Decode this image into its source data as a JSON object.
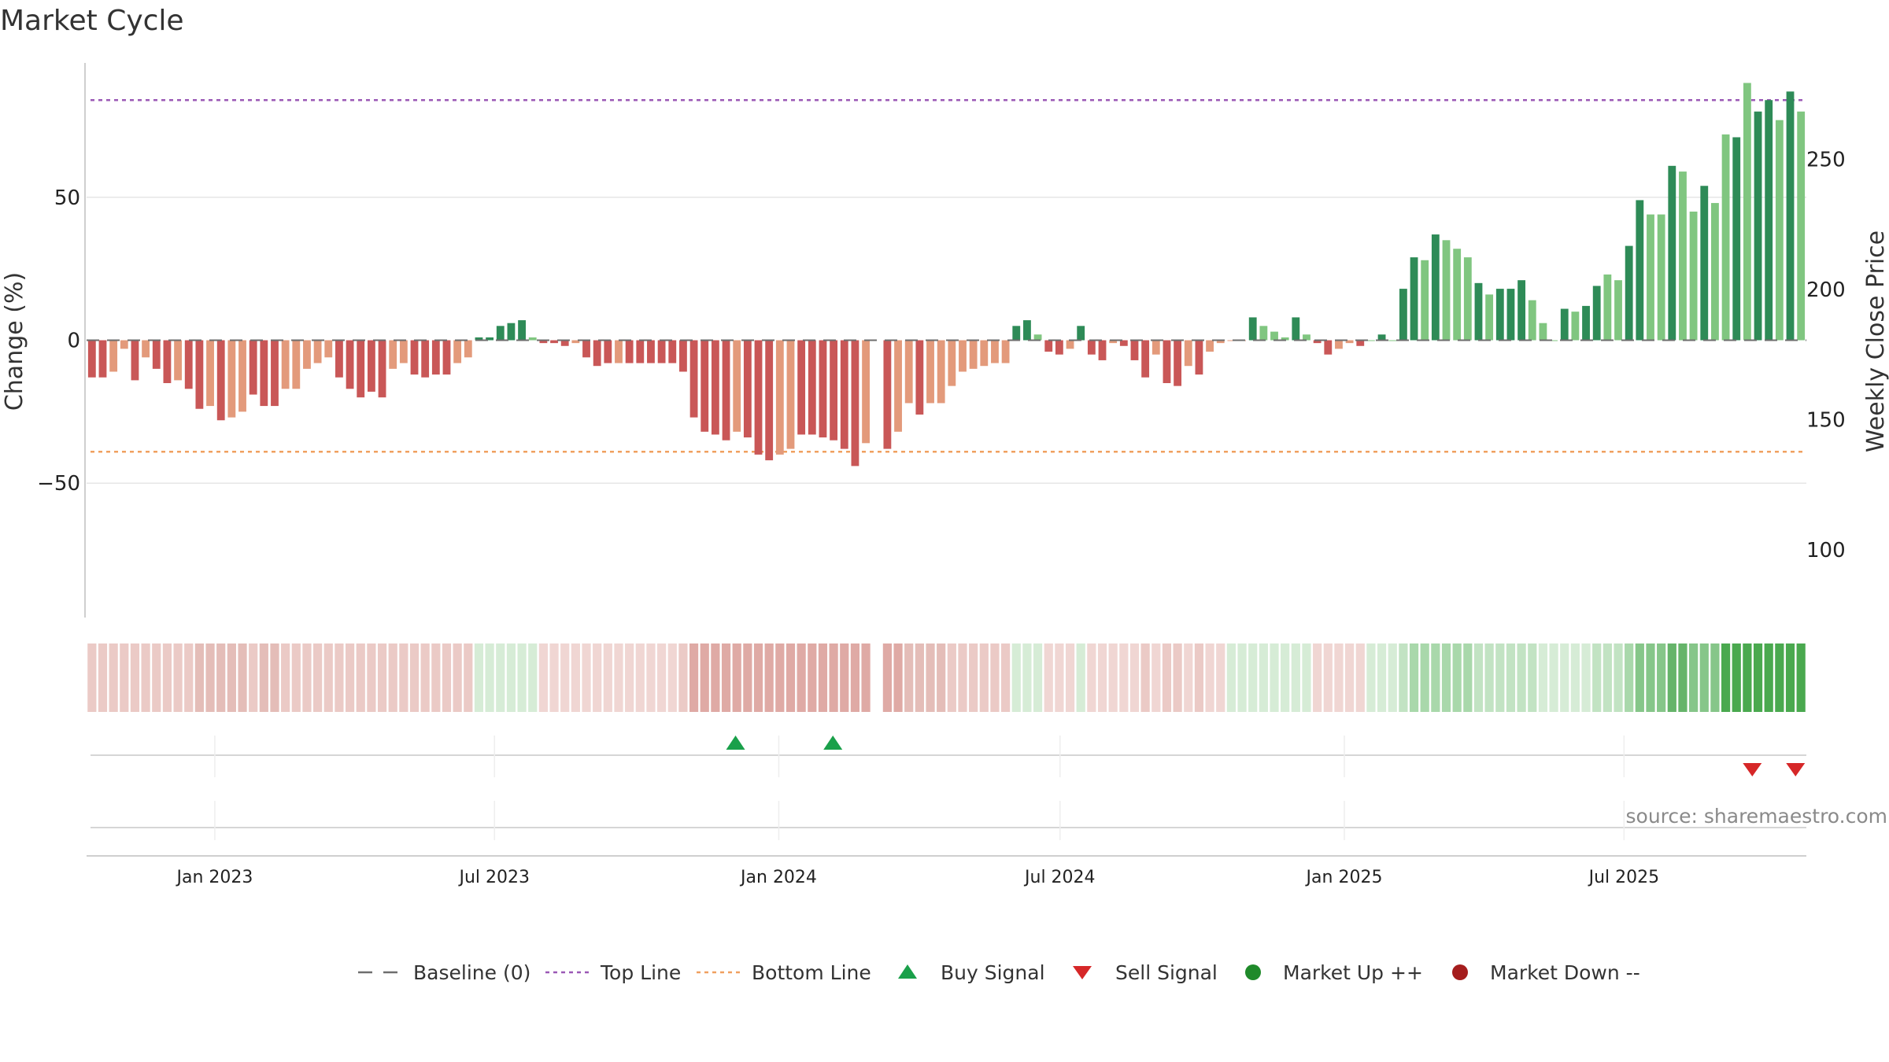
{
  "chart_data": {
    "type": "bar",
    "title": "Market Cycle",
    "ylabel": "Change (%)",
    "y2label": "Weekly Close Price",
    "ylim": [
      -97,
      97
    ],
    "y_ticks": [
      50,
      0,
      -50
    ],
    "y_tick_labels": [
      "50",
      "0",
      "−50"
    ],
    "y2lim": [
      74,
      287
    ],
    "y2_ticks": [
      250,
      200,
      150,
      100
    ],
    "y2_tick_labels": [
      "250",
      "200",
      "150",
      "100"
    ],
    "top_line": 84,
    "bottom_line": -39,
    "baseline": 0,
    "x_start": "2022-10-10",
    "x_end": "2025-10-27",
    "x_ticks": [
      "2023-01-01",
      "2023-07-01",
      "2024-01-01",
      "2024-07-01",
      "2025-01-01",
      "2025-07-01"
    ],
    "x_tick_labels": [
      "Jan 2023",
      "Jul 2023",
      "Jan 2024",
      "Jul 2024",
      "Jan 2025",
      "Jul 2025"
    ],
    "series": [
      {
        "values": [
          -13,
          -13,
          -11,
          -3,
          -14,
          -6,
          -10,
          -15,
          -14,
          -17,
          -24,
          -23,
          -28,
          -27,
          -25,
          -19,
          -23,
          -23,
          -17,
          -17,
          -10,
          -8,
          -6,
          -13,
          -17,
          -20,
          -18,
          -20,
          -10,
          -8,
          -12,
          -13,
          -12,
          -12,
          -8,
          -6,
          1,
          1,
          5,
          6,
          7,
          1,
          -1,
          -1,
          -2,
          -1,
          -6,
          -9,
          -8,
          -8,
          -8,
          -8,
          -8,
          -8,
          -8,
          -11,
          -27,
          -32,
          -33,
          -35,
          -32,
          -34,
          -40,
          -42,
          -40,
          -38,
          -33,
          -33,
          -34,
          -35,
          -38,
          -44,
          -36,
          null,
          -38,
          -32,
          -22,
          -26,
          -22,
          -22,
          -16,
          -11,
          -10,
          -9,
          -8,
          -8,
          5,
          7,
          2,
          -4,
          -5,
          -3,
          5,
          -5,
          -7,
          -1,
          -2,
          -7,
          -13,
          -5,
          -15,
          -16,
          -9,
          -12,
          -4,
          -1,
          0,
          0,
          8,
          5,
          3,
          1,
          8,
          2,
          -1,
          -5,
          -3,
          -1,
          -2,
          0,
          2,
          0,
          18,
          29,
          28,
          37,
          35,
          32,
          29,
          20,
          16,
          18,
          18,
          21,
          14,
          6,
          0,
          11,
          10,
          12,
          19,
          23,
          21,
          33,
          49,
          44,
          44,
          61,
          59,
          45,
          54,
          48,
          72,
          71,
          90,
          80,
          84,
          77,
          87,
          80
        ],
        "colors": [
          "neg-dark",
          "neg-dark",
          "neg-light",
          "neg-light",
          "neg-dark",
          "neg-light",
          "neg-dark",
          "neg-dark",
          "neg-light",
          "neg-dark",
          "neg-dark",
          "neg-light",
          "neg-dark",
          "neg-light",
          "neg-light",
          "neg-dark",
          "neg-dark",
          "neg-dark",
          "neg-light",
          "neg-light",
          "neg-light",
          "neg-light",
          "neg-light",
          "neg-dark",
          "neg-dark",
          "neg-dark",
          "neg-dark",
          "neg-dark",
          "neg-light",
          "neg-light",
          "neg-dark",
          "neg-dark",
          "neg-dark",
          "neg-dark",
          "neg-light",
          "neg-light",
          "pos-dark",
          "pos-dark",
          "pos-dark",
          "pos-dark",
          "pos-dark",
          "pos-light",
          "neg-dark",
          "neg-dark",
          "neg-dark",
          "neg-light",
          "neg-dark",
          "neg-dark",
          "neg-dark",
          "neg-light",
          "neg-dark",
          "neg-dark",
          "neg-dark",
          "neg-dark",
          "neg-dark",
          "neg-dark",
          "neg-dark",
          "neg-dark",
          "neg-dark",
          "neg-dark",
          "neg-light",
          "neg-dark",
          "neg-dark",
          "neg-dark",
          "neg-light",
          "neg-light",
          "neg-dark",
          "neg-dark",
          "neg-dark",
          "neg-dark",
          "neg-dark",
          "neg-dark",
          "neg-light",
          null,
          "neg-dark",
          "neg-light",
          "neg-light",
          "neg-dark",
          "neg-light",
          "neg-light",
          "neg-light",
          "neg-light",
          "neg-light",
          "neg-light",
          "neg-light",
          "neg-light",
          "pos-dark",
          "pos-dark",
          "pos-light",
          "neg-dark",
          "neg-dark",
          "neg-light",
          "pos-dark",
          "neg-dark",
          "neg-dark",
          "neg-light",
          "neg-dark",
          "neg-dark",
          "neg-dark",
          "neg-light",
          "neg-dark",
          "neg-dark",
          "neg-light",
          "neg-dark",
          "neg-light",
          "neg-light",
          "neg-light",
          "neg-light",
          "pos-dark",
          "pos-light",
          "pos-light",
          "pos-light",
          "pos-dark",
          "pos-light",
          "neg-dark",
          "neg-dark",
          "neg-light",
          "neg-light",
          "neg-dark",
          "pos-light",
          "pos-dark",
          "pos-light",
          "pos-dark",
          "pos-dark",
          "pos-light",
          "pos-dark",
          "pos-light",
          "pos-light",
          "pos-light",
          "pos-dark",
          "pos-light",
          "pos-dark",
          "pos-dark",
          "pos-dark",
          "pos-light",
          "pos-light",
          "pos-light",
          "pos-dark",
          "pos-light",
          "pos-dark",
          "pos-dark",
          "pos-light",
          "pos-light",
          "pos-dark",
          "pos-dark",
          "pos-light",
          "pos-light",
          "pos-dark",
          "pos-light",
          "pos-light",
          "pos-dark",
          "pos-light",
          "pos-light",
          "pos-dark",
          "pos-light",
          "pos-dark",
          "pos-dark",
          "pos-light",
          "pos-dark",
          "pos-light"
        ]
      }
    ],
    "heat_strip": [
      -2,
      -2,
      -2,
      -2,
      -2,
      -2,
      -2,
      -2,
      -2,
      -2,
      -3,
      -3,
      -3,
      -3,
      -3,
      -2,
      -3,
      -3,
      -2,
      -2,
      -2,
      -2,
      -2,
      -2,
      -2,
      -2,
      -2,
      -2,
      -2,
      -2,
      -2,
      -2,
      -2,
      -2,
      -2,
      -2,
      1,
      1,
      1,
      1,
      1,
      1,
      -1,
      -1,
      -1,
      -1,
      -1,
      -1,
      -1,
      -1,
      -1,
      -1,
      -1,
      -1,
      -1,
      -2,
      -4,
      -4,
      -4,
      -4,
      -4,
      -4,
      -4,
      -4,
      -4,
      -4,
      -4,
      -4,
      -4,
      -4,
      -4,
      -4,
      -4,
      null,
      -4,
      -4,
      -3,
      -3,
      -3,
      -3,
      -2,
      -2,
      -2,
      -2,
      -2,
      -2,
      1,
      1,
      1,
      -1,
      -1,
      -1,
      1,
      -1,
      -1,
      -1,
      -1,
      -1,
      -2,
      -1,
      -2,
      -2,
      -1,
      -2,
      -1,
      -1,
      1,
      1,
      1,
      1,
      1,
      1,
      1,
      1,
      -1,
      -1,
      -1,
      -1,
      -1,
      1,
      1,
      1,
      2,
      3,
      3,
      3,
      3,
      3,
      3,
      2,
      2,
      2,
      2,
      2,
      2,
      1,
      1,
      1,
      1,
      1,
      2,
      2,
      2,
      3,
      4,
      4,
      4,
      5,
      5,
      4,
      4,
      4,
      6,
      6,
      6,
      6,
      6,
      6,
      6,
      6
    ],
    "buy_signals": [
      "2023-12-04",
      "2024-02-05"
    ],
    "sell_signals": [
      "2025-09-22",
      "2025-10-20"
    ],
    "source": "source: sharemaestro.com",
    "legend": [
      {
        "label": "Baseline (0)",
        "marker": "dash-line",
        "color": "#6e6e6e"
      },
      {
        "label": "Top Line",
        "marker": "dotted-line",
        "color": "#9b59b6"
      },
      {
        "label": "Bottom Line",
        "marker": "dotted-line",
        "color": "#f0a060"
      },
      {
        "label": "Buy Signal",
        "marker": "triangle-up",
        "color": "#1aa04a"
      },
      {
        "label": "Sell Signal",
        "marker": "triangle-down",
        "color": "#d62728"
      },
      {
        "label": "Market Up ++",
        "marker": "circle",
        "color": "#1f8a2a"
      },
      {
        "label": "Market Down --",
        "marker": "circle",
        "color": "#a51d1d"
      }
    ],
    "palette": {
      "neg-dark": "#c95757",
      "neg-light": "#e39a7b",
      "pos-dark": "#2e8b57",
      "pos-light": "#80c680",
      "top_line": "#9b59b6",
      "bottom_line": "#f0a060",
      "baseline": "#6e6e6e",
      "buy": "#1aa04a",
      "sell": "#d62728"
    }
  }
}
